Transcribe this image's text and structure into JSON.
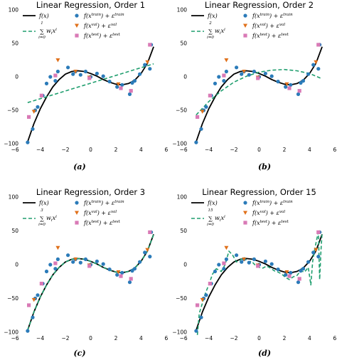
{
  "chart_data": [
    {
      "type": "scatter",
      "title": "Linear Regression, Order 1",
      "panel_label": "(a)",
      "xticks": [
        -6,
        -4,
        -2,
        0,
        2,
        4,
        6
      ],
      "yticks": [
        -100,
        -50,
        0,
        50,
        100
      ],
      "xlim": [
        -5.5,
        5.5
      ],
      "ylim": [
        -100,
        100
      ],
      "fit_order": 1,
      "fit_upper": "1",
      "fit_points": [
        [
          -5.0,
          -38.5
        ],
        [
          5.0,
          19.5
        ]
      ]
    },
    {
      "type": "scatter",
      "title": "Linear Regression, Order 2",
      "panel_label": "(b)",
      "xticks": [
        -6,
        -4,
        -2,
        0,
        2,
        4,
        6
      ],
      "yticks": [
        -100,
        -50,
        0,
        50,
        100
      ],
      "xlim": [
        -5.5,
        5.5
      ],
      "ylim": [
        -100,
        100
      ],
      "fit_order": 2,
      "fit_upper": "2",
      "fit_points": [
        [
          -5.0,
          -57
        ],
        [
          -4.0,
          -37
        ],
        [
          -3.0,
          -21
        ],
        [
          -2.0,
          -8
        ],
        [
          -1.0,
          1
        ],
        [
          0.0,
          7
        ],
        [
          1.0,
          10
        ],
        [
          2.0,
          11
        ],
        [
          3.0,
          9
        ],
        [
          4.0,
          5
        ],
        [
          5.0,
          -3
        ]
      ]
    },
    {
      "type": "scatter",
      "title": "Linear Regression, Order 3",
      "panel_label": "(c)",
      "xticks": [
        -6,
        -4,
        -2,
        0,
        2,
        4,
        6
      ],
      "yticks": [
        -100,
        -50,
        0,
        50,
        100
      ],
      "xlim": [
        -5.5,
        5.5
      ],
      "ylim": [
        -100,
        100
      ],
      "fit_order": 3,
      "fit_upper": "3",
      "fit_points": [
        [
          -5.0,
          -97
        ],
        [
          -4.5,
          -70
        ],
        [
          -4.0,
          -48
        ],
        [
          -3.5,
          -30
        ],
        [
          -3.0,
          -15
        ],
        [
          -2.5,
          -4
        ],
        [
          -2.0,
          4
        ],
        [
          -1.5,
          8
        ],
        [
          -1.0,
          9
        ],
        [
          -0.5,
          8
        ],
        [
          0.0,
          5
        ],
        [
          0.5,
          1
        ],
        [
          1.0,
          -4
        ],
        [
          1.5,
          -8
        ],
        [
          2.0,
          -11
        ],
        [
          2.5,
          -12
        ],
        [
          3.0,
          -10
        ],
        [
          3.5,
          -5
        ],
        [
          4.0,
          5
        ],
        [
          4.5,
          20
        ],
        [
          5.0,
          45
        ]
      ]
    },
    {
      "type": "scatter",
      "title": "Linear Regression, Order 15",
      "panel_label": "(d)",
      "xticks": [
        -6,
        -4,
        -2,
        0,
        2,
        4,
        6
      ],
      "yticks": [
        -100,
        -50,
        0,
        50,
        100
      ],
      "xlim": [
        -5.5,
        5.5
      ],
      "ylim": [
        -100,
        100
      ],
      "fit_order": 15,
      "fit_upper": "15",
      "fit_points": [
        [
          -4.9,
          -104
        ],
        [
          -4.75,
          -72
        ],
        [
          -4.55,
          -60
        ],
        [
          -4.3,
          -44
        ],
        [
          -4.0,
          -30
        ],
        [
          -3.7,
          -14
        ],
        [
          -3.4,
          -6
        ],
        [
          -3.0,
          -10
        ],
        [
          -2.7,
          0
        ],
        [
          -2.4,
          20
        ],
        [
          -2.1,
          14
        ],
        [
          -1.8,
          4
        ],
        [
          -1.5,
          7
        ],
        [
          -1.2,
          11
        ],
        [
          -0.9,
          4
        ],
        [
          -0.6,
          5
        ],
        [
          -0.3,
          -1
        ],
        [
          0.0,
          -4
        ],
        [
          0.3,
          -5
        ],
        [
          0.6,
          -2
        ],
        [
          0.9,
          -5
        ],
        [
          1.2,
          -9
        ],
        [
          1.5,
          -11
        ],
        [
          1.8,
          -14
        ],
        [
          2.1,
          -19
        ],
        [
          2.4,
          -22
        ],
        [
          2.7,
          -18
        ],
        [
          3.0,
          -16
        ],
        [
          3.3,
          -9
        ],
        [
          3.6,
          -11
        ],
        [
          3.9,
          -4
        ],
        [
          4.1,
          -30
        ],
        [
          4.25,
          5
        ],
        [
          4.4,
          22
        ],
        [
          4.6,
          40
        ],
        [
          4.7,
          48
        ],
        [
          4.8,
          -22
        ],
        [
          4.9,
          20
        ],
        [
          5.0,
          48
        ]
      ]
    }
  ],
  "true_curve": [
    [
      -5.0,
      -97
    ],
    [
      -4.5,
      -70
    ],
    [
      -4.0,
      -48
    ],
    [
      -3.5,
      -30
    ],
    [
      -3.0,
      -15
    ],
    [
      -2.5,
      -4
    ],
    [
      -2.0,
      4
    ],
    [
      -1.5,
      8
    ],
    [
      -1.0,
      9
    ],
    [
      -0.5,
      8
    ],
    [
      0.0,
      5
    ],
    [
      0.5,
      1
    ],
    [
      1.0,
      -4
    ],
    [
      1.5,
      -8
    ],
    [
      2.0,
      -11
    ],
    [
      2.5,
      -12
    ],
    [
      3.0,
      -10
    ],
    [
      3.5,
      -5
    ],
    [
      4.0,
      5
    ],
    [
      4.5,
      20
    ],
    [
      5.0,
      45
    ]
  ],
  "train_points": [
    [
      -5.0,
      -98
    ],
    [
      -4.6,
      -78
    ],
    [
      -4.4,
      -50
    ],
    [
      -4.2,
      -45
    ],
    [
      -3.8,
      -28
    ],
    [
      -3.5,
      -10
    ],
    [
      -3.2,
      0
    ],
    [
      -2.8,
      -6
    ],
    [
      -2.6,
      8
    ],
    [
      -1.8,
      14
    ],
    [
      -1.4,
      4
    ],
    [
      -1.2,
      8
    ],
    [
      -0.8,
      3
    ],
    [
      -0.4,
      8
    ],
    [
      0.0,
      0
    ],
    [
      0.5,
      5
    ],
    [
      1.0,
      1
    ],
    [
      1.5,
      -7
    ],
    [
      2.1,
      -15
    ],
    [
      2.5,
      -12
    ],
    [
      3.1,
      -26
    ],
    [
      3.3,
      -9
    ],
    [
      3.5,
      -6
    ],
    [
      3.9,
      4
    ],
    [
      4.3,
      18
    ],
    [
      4.7,
      12
    ],
    [
      4.8,
      48
    ]
  ],
  "val_points": [
    [
      -4.5,
      -52
    ],
    [
      -2.6,
      25
    ],
    [
      -1.2,
      8
    ],
    [
      -0.1,
      -1
    ],
    [
      2.2,
      -11
    ],
    [
      4.5,
      22
    ]
  ],
  "test_points": [
    [
      -4.9,
      -60
    ],
    [
      -3.9,
      -28
    ],
    [
      -2.8,
      2
    ],
    [
      -0.1,
      -2
    ],
    [
      2.4,
      -17
    ],
    [
      3.2,
      -21
    ],
    [
      4.7,
      48
    ]
  ],
  "legend": {
    "true_label": "f(x)",
    "fit_term": "w",
    "fit_index": "i",
    "fit_lower": "i=0",
    "train_label": "f(x",
    "train_sup": "train",
    "train_eps": ") + ε",
    "val_label": "f(x",
    "val_sup": "val",
    "val_eps": ") + ε",
    "test_label": "f(x",
    "test_sup": "test",
    "test_eps": ") + ε"
  },
  "colors": {
    "true_curve": "#000000",
    "fit_line": "#1f9e6e",
    "train": "#2b7bb9",
    "val": "#e0701a",
    "test": "#d97ab6"
  }
}
